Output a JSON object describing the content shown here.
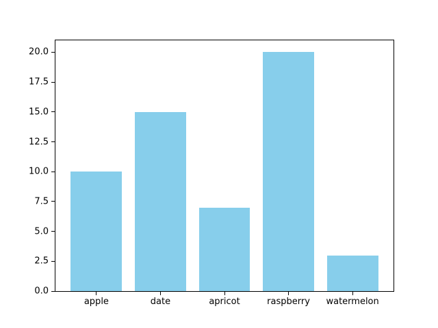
{
  "figure": {
    "background": "#ffffff",
    "axis_color": "#000000"
  },
  "chart_data": {
    "type": "bar",
    "categories": [
      "apple",
      "date",
      "apricot",
      "raspberry",
      "watermelon"
    ],
    "values": [
      10,
      15,
      7,
      20,
      3
    ],
    "title": "",
    "xlabel": "",
    "ylabel": "",
    "ylim": [
      0,
      21
    ],
    "xlim": [
      -0.64,
      4.64
    ],
    "bar_width": 0.8,
    "ytick_labels": [
      "0.0",
      "2.5",
      "5.0",
      "7.5",
      "10.0",
      "12.5",
      "15.0",
      "17.5",
      "20.0"
    ],
    "bar_color": "#87ceeb",
    "grid": false,
    "legend": "none"
  }
}
